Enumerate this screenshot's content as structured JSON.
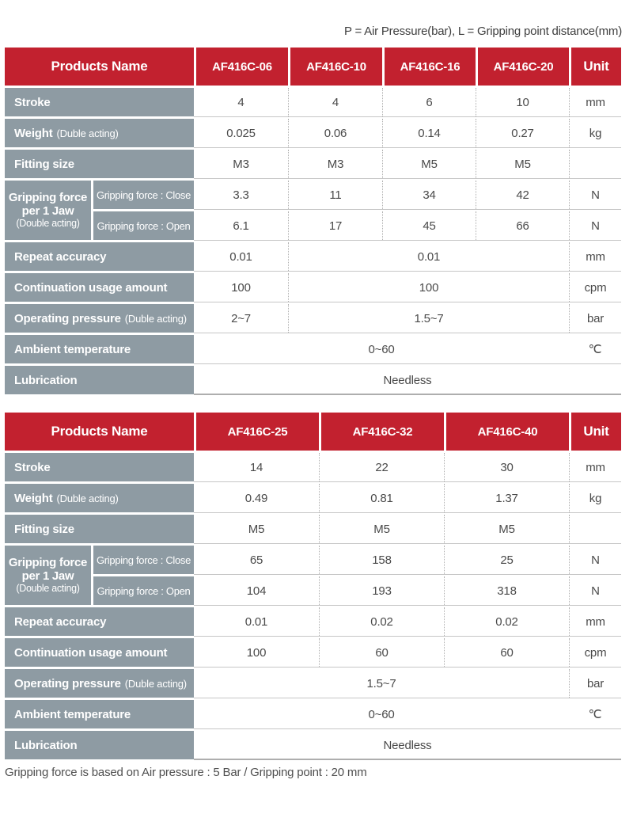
{
  "note_top": "P = Air Pressure(bar), L = Gripping point distance(mm)",
  "footnote": "Gripping force is based on Air pressure : 5 Bar / Gripping point : 20 mm",
  "colors": {
    "header_red": "#c2212f",
    "label_gray": "#8e9ba3",
    "data_text": "#4a4a4a",
    "row_line": "#c6c6c6"
  },
  "tables": [
    {
      "header": {
        "label": "Products Name",
        "products": [
          "AF416C-06",
          "AF416C-10",
          "AF416C-16",
          "AF416C-20"
        ],
        "unit": "Unit"
      },
      "rows": [
        {
          "type": "simple",
          "label": "Stroke",
          "cells": [
            {
              "t": "4"
            },
            {
              "t": "4"
            },
            {
              "t": "6"
            },
            {
              "t": "10"
            }
          ],
          "unit": "mm"
        },
        {
          "type": "simple",
          "label": "Weight",
          "note": "(Duble acting)",
          "cells": [
            {
              "t": "0.025"
            },
            {
              "t": "0.06"
            },
            {
              "t": "0.14"
            },
            {
              "t": "0.27"
            }
          ],
          "unit": "kg"
        },
        {
          "type": "simple",
          "label": "Fitting size",
          "cells": [
            {
              "t": "M3"
            },
            {
              "t": "M3"
            },
            {
              "t": "M5"
            },
            {
              "t": "M5"
            }
          ],
          "unit": ""
        },
        {
          "type": "grouped",
          "group_lines_main": [
            "Gripping force",
            "per 1 Jaw"
          ],
          "group_line_note": "(Double acting)",
          "subrows": [
            {
              "label": "Gripping force : Close",
              "cells": [
                {
                  "t": "3.3"
                },
                {
                  "t": "11"
                },
                {
                  "t": "34"
                },
                {
                  "t": "42"
                }
              ],
              "unit": "N"
            },
            {
              "label": "Gripping force : Open",
              "cells": [
                {
                  "t": "6.1"
                },
                {
                  "t": "17"
                },
                {
                  "t": "45"
                },
                {
                  "t": "66"
                }
              ],
              "unit": "N"
            }
          ]
        },
        {
          "type": "simple",
          "label": "Repeat accuracy",
          "cells": [
            {
              "t": "0.01"
            },
            {
              "t": "0.01",
              "span": 3
            }
          ],
          "unit": "mm"
        },
        {
          "type": "simple",
          "label": "Continuation usage amount",
          "cells": [
            {
              "t": "100"
            },
            {
              "t": "100",
              "span": 3
            }
          ],
          "unit": "cpm"
        },
        {
          "type": "simple",
          "label": "Operating pressure",
          "note": "(Duble acting)",
          "cells": [
            {
              "t": "2~7"
            },
            {
              "t": "1.5~7",
              "span": 3
            }
          ],
          "unit": "bar"
        },
        {
          "type": "simple",
          "label": "Ambient temperature",
          "cells": [
            {
              "t": "0~60",
              "span": 4
            }
          ],
          "unit": "℃",
          "no_unit_divider": true
        },
        {
          "type": "fullspan",
          "label": "Lubrication",
          "value": "Needless"
        }
      ]
    },
    {
      "header": {
        "label": "Products Name",
        "products": [
          "AF416C-25",
          "AF416C-32",
          "AF416C-40"
        ],
        "unit": "Unit"
      },
      "rows": [
        {
          "type": "simple",
          "label": "Stroke",
          "cells": [
            {
              "t": "14"
            },
            {
              "t": "22"
            },
            {
              "t": "30"
            }
          ],
          "unit": "mm"
        },
        {
          "type": "simple",
          "label": "Weight",
          "note": "(Duble acting)",
          "cells": [
            {
              "t": "0.49"
            },
            {
              "t": "0.81"
            },
            {
              "t": "1.37"
            }
          ],
          "unit": "kg"
        },
        {
          "type": "simple",
          "label": "Fitting size",
          "cells": [
            {
              "t": "M5"
            },
            {
              "t": "M5"
            },
            {
              "t": "M5"
            }
          ],
          "unit": ""
        },
        {
          "type": "grouped",
          "group_lines_main": [
            "Gripping force",
            "per 1 Jaw"
          ],
          "group_line_note": "(Double acting)",
          "subrows": [
            {
              "label": "Gripping force : Close",
              "cells": [
                {
                  "t": "65"
                },
                {
                  "t": "158"
                },
                {
                  "t": "25"
                }
              ],
              "unit": "N"
            },
            {
              "label": "Gripping force : Open",
              "cells": [
                {
                  "t": "104"
                },
                {
                  "t": "193"
                },
                {
                  "t": "318"
                }
              ],
              "unit": "N"
            }
          ]
        },
        {
          "type": "simple",
          "label": "Repeat accuracy",
          "cells": [
            {
              "t": "0.01"
            },
            {
              "t": "0.02"
            },
            {
              "t": "0.02"
            }
          ],
          "unit": "mm"
        },
        {
          "type": "simple",
          "label": "Continuation usage amount",
          "cells": [
            {
              "t": "100"
            },
            {
              "t": "60"
            },
            {
              "t": "60"
            }
          ],
          "unit": "cpm"
        },
        {
          "type": "simple",
          "label": "Operating pressure",
          "note": "(Duble acting)",
          "cells": [
            {
              "t": "1.5~7",
              "span": 3
            }
          ],
          "unit": "bar"
        },
        {
          "type": "simple",
          "label": "Ambient temperature",
          "cells": [
            {
              "t": "0~60",
              "span": 3
            }
          ],
          "unit": "℃",
          "no_unit_divider": true
        },
        {
          "type": "fullspan",
          "label": "Lubrication",
          "value": "Needless"
        }
      ]
    }
  ]
}
